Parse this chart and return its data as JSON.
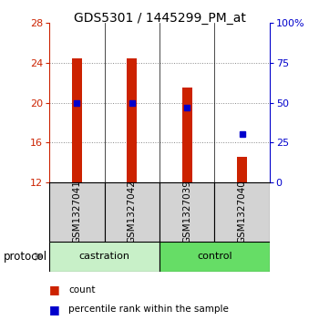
{
  "title": "GDS5301 / 1445299_PM_at",
  "samples": [
    "GSM1327041",
    "GSM1327042",
    "GSM1327039",
    "GSM1327040"
  ],
  "bar_bottoms": [
    12,
    12,
    12,
    12
  ],
  "bar_tops": [
    24.5,
    24.5,
    21.5,
    14.5
  ],
  "percentile_values": [
    49.5,
    49.5,
    47.0,
    30.0
  ],
  "ylim_left": [
    12,
    28
  ],
  "ylim_right": [
    0,
    100
  ],
  "yticks_left": [
    12,
    16,
    20,
    24,
    28
  ],
  "yticks_right": [
    0,
    25,
    50,
    75,
    100
  ],
  "bar_color": "#cc2200",
  "percentile_color": "#0000cc",
  "sample_box_color": "#d3d3d3",
  "castration_color": "#c8f0c8",
  "control_color": "#66dd66",
  "grid_color": "#888888",
  "title_fontsize": 10,
  "tick_fontsize": 8,
  "bar_width": 0.18
}
